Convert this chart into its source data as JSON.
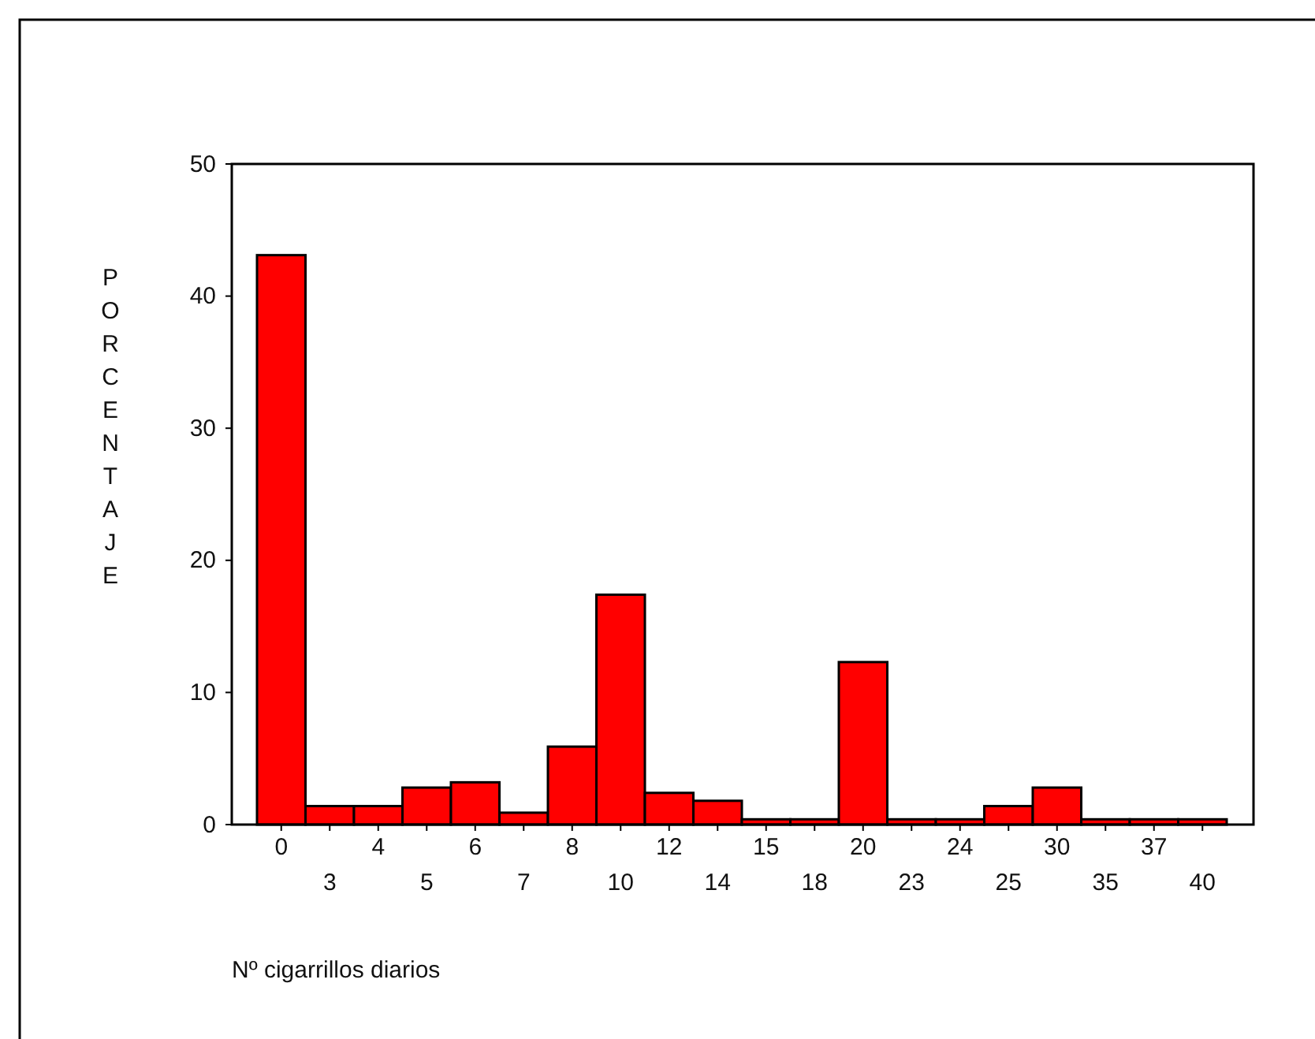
{
  "chart_data": {
    "type": "bar",
    "xlabel": "Nº cigarrillos diarios",
    "ylabel": "PORCENTAJE",
    "categories": [
      "0",
      "3",
      "4",
      "5",
      "6",
      "7",
      "8",
      "10",
      "12",
      "14",
      "15",
      "18",
      "20",
      "23",
      "24",
      "25",
      "30",
      "35",
      "37",
      "40"
    ],
    "values": [
      43.1,
      1.4,
      1.4,
      2.8,
      3.2,
      0.9,
      5.9,
      17.4,
      2.4,
      1.8,
      0.4,
      0.4,
      12.3,
      0.4,
      0.4,
      1.4,
      2.8,
      0.4,
      0.4,
      0.4
    ],
    "color": "#ff0000",
    "ylim": [
      0,
      50
    ],
    "yticks": [
      0,
      10,
      20,
      30,
      40,
      50
    ],
    "grid": false
  }
}
